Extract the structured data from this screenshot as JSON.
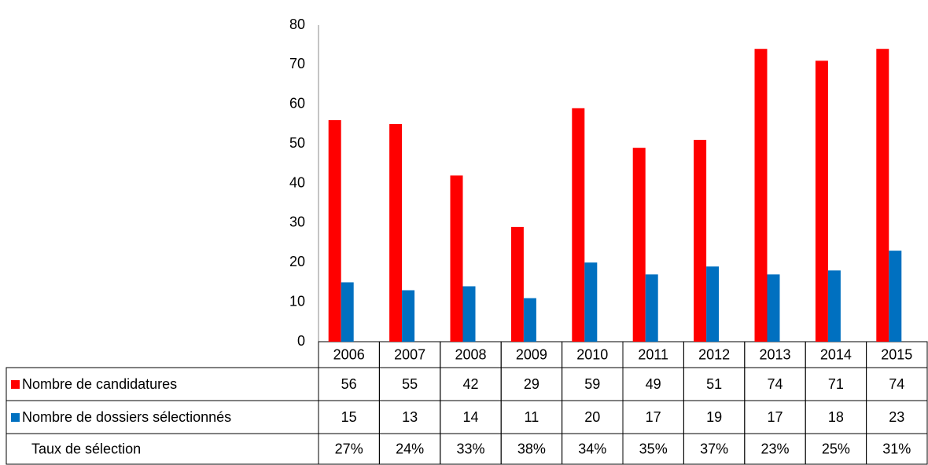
{
  "chart_data": {
    "type": "bar",
    "categories": [
      "2006",
      "2007",
      "2008",
      "2009",
      "2010",
      "2011",
      "2012",
      "2013",
      "2014",
      "2015"
    ],
    "series": [
      {
        "name": "Nombre de candidatures",
        "color": "#ff0000",
        "values": [
          56,
          55,
          42,
          29,
          59,
          49,
          51,
          74,
          71,
          74
        ]
      },
      {
        "name": "Nombre de dossiers sélectionnés",
        "color": "#0070c0",
        "values": [
          15,
          13,
          14,
          11,
          20,
          17,
          19,
          17,
          18,
          23
        ]
      }
    ],
    "table_rows": [
      {
        "name": "Taux de sélection",
        "values": [
          27,
          24,
          33,
          38,
          34,
          35,
          37,
          23,
          25,
          31
        ],
        "value_labels": [
          "27%",
          "24%",
          "33%",
          "38%",
          "34%",
          "35%",
          "37%",
          "23%",
          "25%",
          "31%"
        ]
      }
    ],
    "ylim": [
      0,
      80
    ],
    "yticks": [
      0,
      10,
      20,
      30,
      40,
      50,
      60,
      70,
      80
    ],
    "grid": false
  }
}
